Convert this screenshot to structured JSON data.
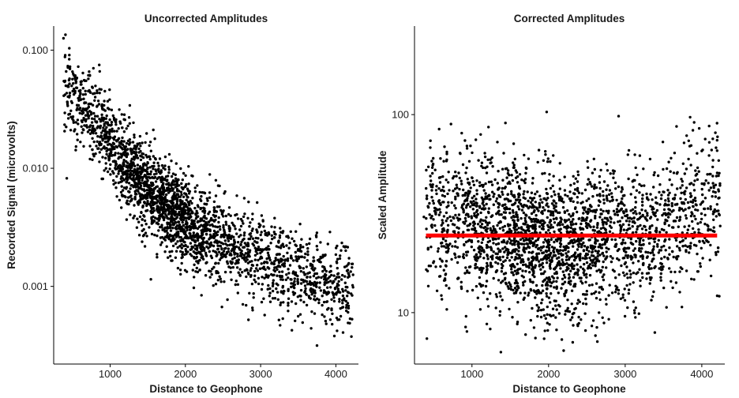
{
  "chart_data": [
    {
      "type": "scatter",
      "title": "Uncorrected Amplitudes",
      "xlabel": "Distance to Geophone",
      "ylabel": "Recorded Signal (microvolts)",
      "y_scale": "log",
      "xlim": [
        250,
        4300
      ],
      "ylim": [
        0.00022,
        0.16
      ],
      "x_ticks": [
        1000,
        2000,
        3000,
        4000
      ],
      "x_tick_labels": [
        "1000",
        "2000",
        "3000",
        "4000"
      ],
      "y_ticks": [
        0.001,
        0.01,
        0.1
      ],
      "y_tick_labels": [
        "0.001",
        "0.010",
        "0.100"
      ],
      "grid": false,
      "point_color": "#000000",
      "trend_points": [
        {
          "x": 400,
          "y": 0.05
        },
        {
          "x": 600,
          "y": 0.035
        },
        {
          "x": 800,
          "y": 0.025
        },
        {
          "x": 1000,
          "y": 0.017
        },
        {
          "x": 1200,
          "y": 0.011
        },
        {
          "x": 1400,
          "y": 0.0075
        },
        {
          "x": 1600,
          "y": 0.0058
        },
        {
          "x": 1800,
          "y": 0.0045
        },
        {
          "x": 2000,
          "y": 0.0036
        },
        {
          "x": 2200,
          "y": 0.003
        },
        {
          "x": 2400,
          "y": 0.0026
        },
        {
          "x": 2600,
          "y": 0.0023
        },
        {
          "x": 2800,
          "y": 0.002
        },
        {
          "x": 3000,
          "y": 0.0017
        },
        {
          "x": 3200,
          "y": 0.0015
        },
        {
          "x": 3400,
          "y": 0.0013
        },
        {
          "x": 3600,
          "y": 0.0012
        },
        {
          "x": 3800,
          "y": 0.0011
        },
        {
          "x": 4000,
          "y": 0.001
        },
        {
          "x": 4200,
          "y": 0.001
        }
      ]
    },
    {
      "type": "scatter",
      "title": "Corrected Amplitudes",
      "xlabel": "Distance to Geophone",
      "ylabel": "Scaled Amplitude",
      "y_scale": "log",
      "xlim": [
        250,
        4300
      ],
      "ylim": [
        5.5,
        280
      ],
      "x_ticks": [
        1000,
        2000,
        3000,
        4000
      ],
      "x_tick_labels": [
        "1000",
        "2000",
        "3000",
        "4000"
      ],
      "y_ticks": [
        10,
        100
      ],
      "y_tick_labels": [
        "10",
        "100"
      ],
      "grid": false,
      "point_color": "#000000",
      "reference_line": {
        "y": 24.5,
        "x_range": [
          400,
          4200
        ],
        "color": "#ff0000"
      },
      "trend_points": [
        {
          "x": 400,
          "y": 30
        },
        {
          "x": 800,
          "y": 30
        },
        {
          "x": 1200,
          "y": 28
        },
        {
          "x": 1600,
          "y": 24
        },
        {
          "x": 2000,
          "y": 21
        },
        {
          "x": 2400,
          "y": 22
        },
        {
          "x": 2800,
          "y": 25
        },
        {
          "x": 3200,
          "y": 25
        },
        {
          "x": 3600,
          "y": 30
        },
        {
          "x": 4000,
          "y": 35
        }
      ]
    }
  ]
}
